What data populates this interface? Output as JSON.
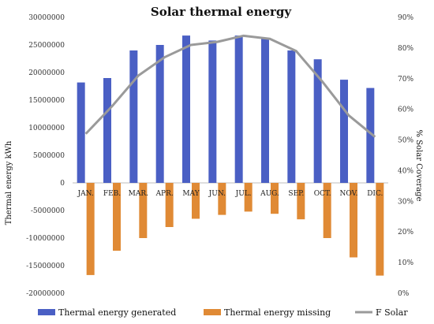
{
  "chart_data": {
    "type": "bar",
    "title": "Solar thermal energy",
    "ylabel": "Thermal energy kWh",
    "y2label": "% Solar Coverage",
    "categories": [
      "JAN.",
      "FEB.",
      "MAR.",
      "APR.",
      "MAY",
      "JUN.",
      "JUL.",
      "AUG.",
      "SEP.",
      "OCT.",
      "NOV.",
      "DIC."
    ],
    "ylim": [
      -20000000,
      30000000
    ],
    "y_ticks": [
      30000000,
      25000000,
      20000000,
      15000000,
      10000000,
      5000000,
      0,
      -5000000,
      -10000000,
      -15000000,
      -20000000
    ],
    "y_tick_labels": [
      "30000000",
      "25000000",
      "20000000",
      "15000000",
      "10000000",
      "5000000",
      "0",
      "-5000000",
      "-10000000",
      "-15000000",
      "-20000000"
    ],
    "y2lim": [
      0,
      90
    ],
    "y2_ticks": [
      90,
      80,
      70,
      60,
      50,
      40,
      30,
      20,
      10,
      0
    ],
    "y2_tick_labels": [
      "90%",
      "80%",
      "70%",
      "60%",
      "50%",
      "40%",
      "30%",
      "20%",
      "10%",
      "0%"
    ],
    "series": [
      {
        "name": "Thermal energy generated",
        "kind": "bar",
        "axis": "left",
        "color": "#4a5fc4",
        "values": [
          18200000,
          19000000,
          24000000,
          25000000,
          26700000,
          25800000,
          26700000,
          26300000,
          24000000,
          22400000,
          18700000,
          17200000
        ]
      },
      {
        "name": "Thermal energy missing",
        "kind": "bar",
        "axis": "left",
        "color": "#e08a35",
        "values": [
          -16700000,
          -12300000,
          -10000000,
          -8000000,
          -6500000,
          -5800000,
          -5200000,
          -5600000,
          -6600000,
          -10000000,
          -13500000,
          -16800000
        ]
      },
      {
        "name": "F Solar",
        "kind": "line",
        "axis": "right",
        "color": "#9a9a9a",
        "values": [
          52,
          61,
          71,
          77,
          81,
          82,
          84,
          83,
          79,
          69,
          58,
          51
        ]
      }
    ],
    "legend_position": "bottom",
    "grid": false
  }
}
